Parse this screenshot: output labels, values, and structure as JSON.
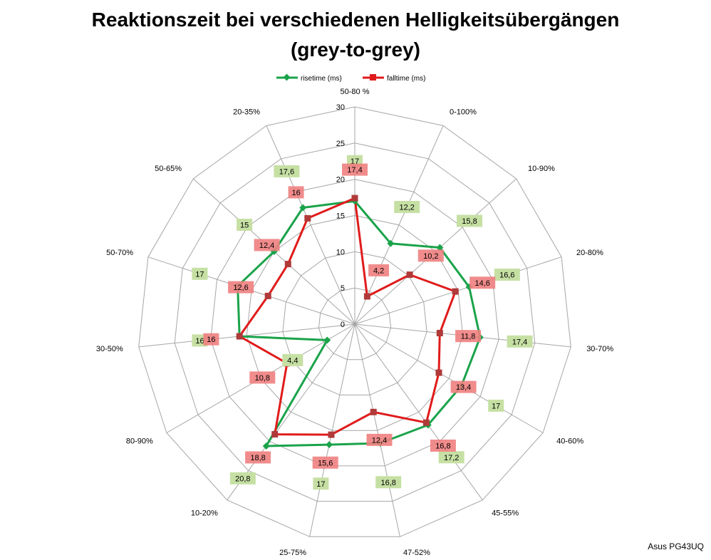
{
  "title_line1": "Reaktionszeit bei verschiedenen Helligkeitsübergängen",
  "title_line2": "(grey-to-grey)",
  "credit": "Asus PG43UQ",
  "colors": {
    "rise": "#1aa34a",
    "fall": "#e01b1b",
    "rise_label_bg": "#c6e0a4",
    "fall_label_bg": "#f08080"
  },
  "chart_data": {
    "type": "radar",
    "categories": [
      "50-80 %",
      "0-100%",
      "10-90%",
      "20-80%",
      "30-70%",
      "40-60%",
      "45-55%",
      "47-52%",
      "25-75%",
      "10-20%",
      "80-90%",
      "30-50%",
      "50-70%",
      "50-65%",
      "20-35%"
    ],
    "rlim": [
      0,
      30
    ],
    "ticks": [
      0,
      5,
      10,
      15,
      20,
      25,
      30
    ],
    "legend_position": "top",
    "grid": true,
    "series": [
      {
        "name": "risetime (ms)",
        "values": [
          17,
          12.2,
          15.8,
          16.6,
          17.4,
          17,
          17.2,
          16.8,
          17,
          20.8,
          4.4,
          16,
          17,
          15,
          17.6
        ]
      },
      {
        "name": "falltime (ms)",
        "values": [
          17.4,
          4.2,
          10.2,
          14.6,
          11.8,
          13.4,
          16.8,
          12.4,
          15.6,
          18.8,
          10.8,
          16,
          12.6,
          12.4,
          16
        ]
      }
    ]
  }
}
